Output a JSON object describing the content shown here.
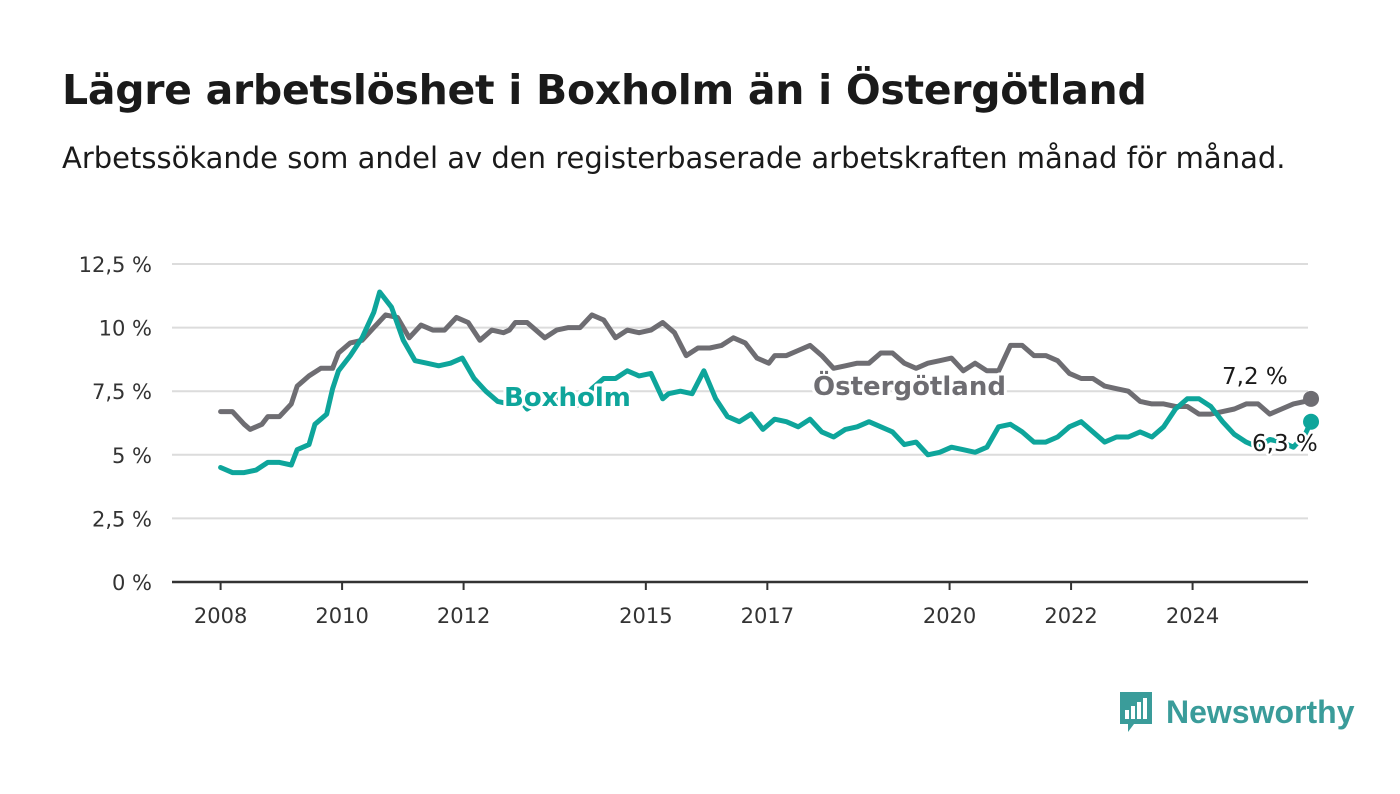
{
  "header": {
    "title": "Lägre arbetslöshet i Boxholm än i Östergötland",
    "subtitle": "Arbetssökande som andel av den registerbaserade arbetskraften månad för månad."
  },
  "brand": {
    "name": "Newsworthy",
    "icon": "bar-chart-speech-bubble-icon",
    "color": "#3a9c9a"
  },
  "chart_data": {
    "type": "line",
    "title": "Lägre arbetslöshet i Boxholm än i Östergötland",
    "subtitle": "Arbetssökande som andel av den registerbaserade arbetskraften månad för månad.",
    "ylim": [
      0,
      12.5
    ],
    "xlim": [
      2007.2,
      2025.9
    ],
    "y_ticks": [
      0,
      2.5,
      5,
      7.5,
      10,
      12.5
    ],
    "y_tick_labels": [
      "0 %",
      "2,5 %",
      "5 %",
      "7,5 %",
      "10 %",
      "12,5 %"
    ],
    "x_ticks": [
      2008,
      2010,
      2012,
      2015,
      2017,
      2020,
      2022,
      2024
    ],
    "x_tick_labels": [
      "2008",
      "2010",
      "2012",
      "2015",
      "2017",
      "2020",
      "2022",
      "2024"
    ],
    "grid": true,
    "series": [
      {
        "name": "Östergötland",
        "color": "#6e6d72",
        "end_value": 7.2,
        "end_label": "7,2 %",
        "points": [
          [
            2008.0,
            6.7
          ],
          [
            2008.2,
            6.7
          ],
          [
            2008.4,
            6.2
          ],
          [
            2008.5,
            6.0
          ],
          [
            2008.7,
            6.2
          ],
          [
            2008.8,
            6.5
          ],
          [
            2009.0,
            6.5
          ],
          [
            2009.2,
            7.0
          ],
          [
            2009.3,
            7.7
          ],
          [
            2009.5,
            8.1
          ],
          [
            2009.7,
            8.4
          ],
          [
            2009.9,
            8.4
          ],
          [
            2010.0,
            9.0
          ],
          [
            2010.2,
            9.4
          ],
          [
            2010.4,
            9.5
          ],
          [
            2010.6,
            10.0
          ],
          [
            2010.8,
            10.5
          ],
          [
            2011.0,
            10.4
          ],
          [
            2011.2,
            9.6
          ],
          [
            2011.4,
            10.1
          ],
          [
            2011.6,
            9.9
          ],
          [
            2011.8,
            9.9
          ],
          [
            2012.0,
            10.4
          ],
          [
            2012.2,
            10.2
          ],
          [
            2012.4,
            9.5
          ],
          [
            2012.6,
            9.9
          ],
          [
            2012.8,
            9.8
          ],
          [
            2012.9,
            9.9
          ],
          [
            2013.0,
            10.2
          ],
          [
            2013.2,
            10.2
          ],
          [
            2013.4,
            9.8
          ],
          [
            2013.5,
            9.6
          ],
          [
            2013.7,
            9.9
          ],
          [
            2013.9,
            10.0
          ],
          [
            2014.1,
            10.0
          ],
          [
            2014.3,
            10.5
          ],
          [
            2014.5,
            10.3
          ],
          [
            2014.7,
            9.6
          ],
          [
            2014.9,
            9.9
          ],
          [
            2015.1,
            9.8
          ],
          [
            2015.3,
            9.9
          ],
          [
            2015.5,
            10.2
          ],
          [
            2015.7,
            9.8
          ],
          [
            2015.9,
            8.9
          ],
          [
            2016.1,
            9.2
          ],
          [
            2016.3,
            9.2
          ],
          [
            2016.5,
            9.3
          ],
          [
            2016.7,
            9.6
          ],
          [
            2016.9,
            9.4
          ],
          [
            2017.1,
            8.8
          ],
          [
            2017.3,
            8.6
          ],
          [
            2017.4,
            8.9
          ],
          [
            2017.6,
            8.9
          ],
          [
            2017.8,
            9.1
          ],
          [
            2018.0,
            9.3
          ],
          [
            2018.2,
            8.9
          ],
          [
            2018.4,
            8.4
          ],
          [
            2018.6,
            8.5
          ],
          [
            2018.8,
            8.6
          ],
          [
            2019.0,
            8.6
          ],
          [
            2019.2,
            9.0
          ],
          [
            2019.4,
            9.0
          ],
          [
            2019.6,
            8.6
          ],
          [
            2019.8,
            8.4
          ],
          [
            2020.0,
            8.6
          ],
          [
            2020.2,
            8.7
          ],
          [
            2020.4,
            8.8
          ],
          [
            2020.6,
            8.3
          ],
          [
            2020.8,
            8.6
          ],
          [
            2021.0,
            8.3
          ],
          [
            2021.2,
            8.3
          ],
          [
            2021.4,
            9.3
          ],
          [
            2021.6,
            9.3
          ],
          [
            2021.8,
            8.9
          ],
          [
            2022.0,
            8.9
          ],
          [
            2022.2,
            8.7
          ],
          [
            2022.4,
            8.2
          ],
          [
            2022.6,
            8.0
          ],
          [
            2022.8,
            8.0
          ],
          [
            2023.0,
            7.7
          ],
          [
            2023.2,
            7.6
          ],
          [
            2023.4,
            7.5
          ],
          [
            2023.6,
            7.1
          ],
          [
            2023.8,
            7.0
          ],
          [
            2024.0,
            7.0
          ],
          [
            2024.2,
            6.9
          ],
          [
            2024.4,
            6.9
          ],
          [
            2024.6,
            6.6
          ],
          [
            2024.8,
            6.6
          ],
          [
            2025.0,
            6.7
          ],
          [
            2025.2,
            6.8
          ],
          [
            2025.4,
            7.0
          ],
          [
            2025.6,
            7.0
          ],
          [
            2025.8,
            6.6
          ],
          [
            2026.0,
            6.8
          ],
          [
            2026.2,
            7.0
          ],
          [
            2026.4,
            7.1
          ],
          [
            2026.5,
            7.2
          ]
        ]
      },
      {
        "name": "Boxholm",
        "color": "#0ea59b",
        "end_value": 6.3,
        "end_label": "6,3 %",
        "points": [
          [
            2008.0,
            4.5
          ],
          [
            2008.2,
            4.3
          ],
          [
            2008.4,
            4.3
          ],
          [
            2008.6,
            4.4
          ],
          [
            2008.8,
            4.7
          ],
          [
            2009.0,
            4.7
          ],
          [
            2009.2,
            4.6
          ],
          [
            2009.3,
            5.2
          ],
          [
            2009.5,
            5.4
          ],
          [
            2009.6,
            6.2
          ],
          [
            2009.8,
            6.6
          ],
          [
            2009.9,
            7.6
          ],
          [
            2010.0,
            8.3
          ],
          [
            2010.2,
            8.9
          ],
          [
            2010.4,
            9.6
          ],
          [
            2010.6,
            10.6
          ],
          [
            2010.7,
            11.4
          ],
          [
            2010.9,
            10.8
          ],
          [
            2011.1,
            9.5
          ],
          [
            2011.3,
            8.7
          ],
          [
            2011.5,
            8.6
          ],
          [
            2011.7,
            8.5
          ],
          [
            2011.9,
            8.6
          ],
          [
            2012.1,
            8.8
          ],
          [
            2012.3,
            8.0
          ],
          [
            2012.5,
            7.5
          ],
          [
            2012.7,
            7.1
          ],
          [
            2012.9,
            7.0
          ],
          [
            2013.0,
            7.4
          ],
          [
            2013.2,
            6.8
          ],
          [
            2013.4,
            7.1
          ],
          [
            2013.6,
            7.4
          ],
          [
            2013.8,
            7.1
          ],
          [
            2014.0,
            6.9
          ],
          [
            2014.1,
            7.0
          ],
          [
            2014.3,
            7.6
          ],
          [
            2014.5,
            8.0
          ],
          [
            2014.7,
            8.0
          ],
          [
            2014.9,
            8.3
          ],
          [
            2015.1,
            8.1
          ],
          [
            2015.3,
            8.2
          ],
          [
            2015.5,
            7.2
          ],
          [
            2015.6,
            7.4
          ],
          [
            2015.8,
            7.5
          ],
          [
            2016.0,
            7.4
          ],
          [
            2016.2,
            8.3
          ],
          [
            2016.4,
            7.2
          ],
          [
            2016.6,
            6.5
          ],
          [
            2016.8,
            6.3
          ],
          [
            2017.0,
            6.6
          ],
          [
            2017.2,
            6.0
          ],
          [
            2017.4,
            6.4
          ],
          [
            2017.6,
            6.3
          ],
          [
            2017.8,
            6.1
          ],
          [
            2018.0,
            6.4
          ],
          [
            2018.2,
            5.9
          ],
          [
            2018.4,
            5.7
          ],
          [
            2018.6,
            6.0
          ],
          [
            2018.8,
            6.1
          ],
          [
            2019.0,
            6.3
          ],
          [
            2019.2,
            6.1
          ],
          [
            2019.4,
            5.9
          ],
          [
            2019.6,
            5.4
          ],
          [
            2019.8,
            5.5
          ],
          [
            2020.0,
            5.0
          ],
          [
            2020.2,
            5.1
          ],
          [
            2020.4,
            5.3
          ],
          [
            2020.6,
            5.2
          ],
          [
            2020.8,
            5.1
          ],
          [
            2021.0,
            5.3
          ],
          [
            2021.2,
            6.1
          ],
          [
            2021.4,
            6.2
          ],
          [
            2021.6,
            5.9
          ],
          [
            2021.8,
            5.5
          ],
          [
            2022.0,
            5.5
          ],
          [
            2022.2,
            5.7
          ],
          [
            2022.4,
            6.1
          ],
          [
            2022.6,
            6.3
          ],
          [
            2022.8,
            5.9
          ],
          [
            2023.0,
            5.5
          ],
          [
            2023.2,
            5.7
          ],
          [
            2023.4,
            5.7
          ],
          [
            2023.6,
            5.9
          ],
          [
            2023.8,
            5.7
          ],
          [
            2024.0,
            6.1
          ],
          [
            2024.2,
            6.8
          ],
          [
            2024.4,
            7.2
          ],
          [
            2024.6,
            7.2
          ],
          [
            2024.8,
            6.9
          ],
          [
            2025.0,
            6.3
          ],
          [
            2025.2,
            5.8
          ],
          [
            2025.4,
            5.5
          ],
          [
            2025.6,
            5.3
          ],
          [
            2025.8,
            5.6
          ],
          [
            2026.0,
            5.5
          ],
          [
            2026.2,
            5.3
          ],
          [
            2026.4,
            5.8
          ],
          [
            2026.5,
            6.3
          ]
        ]
      }
    ]
  }
}
